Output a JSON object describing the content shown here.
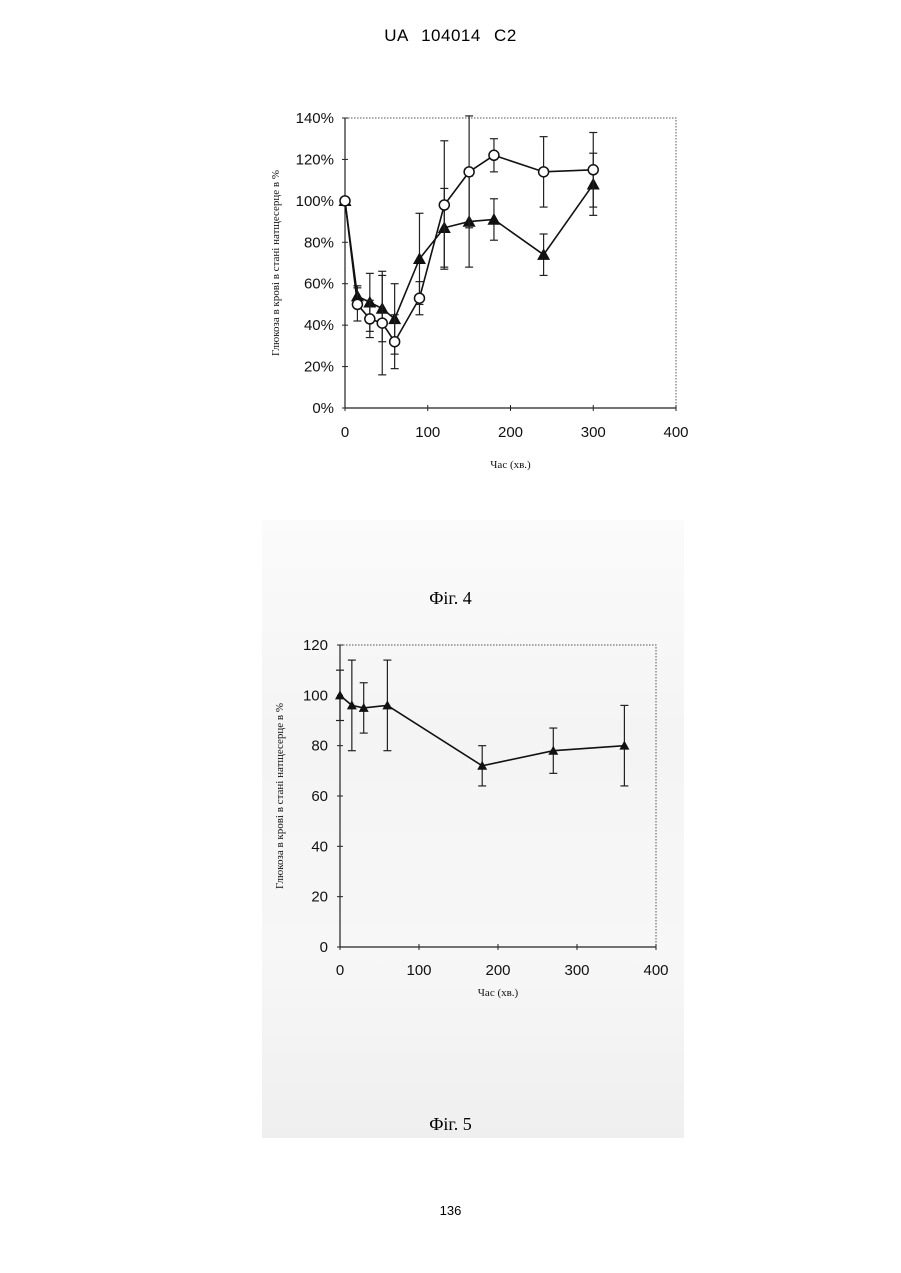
{
  "header": {
    "text": "UA   104014   C2"
  },
  "page_number": "136",
  "figures": [
    {
      "caption": "Фіг. 4"
    },
    {
      "caption": "Фіг. 5"
    }
  ],
  "chart_data": [
    {
      "type": "line",
      "xlabel": "Час (хв.)",
      "ylabel": "Глюкоза в крові в стані натщесерце в %",
      "xlim": [
        0,
        400
      ],
      "ylim": [
        0,
        140
      ],
      "x_ticks": [
        "0",
        "100",
        "200",
        "300",
        "400"
      ],
      "y_ticks": [
        "0%",
        "20%",
        "40%",
        "60%",
        "80%",
        "100%",
        "120%",
        "140%"
      ],
      "series": [
        {
          "marker": "triangle",
          "x": [
            0,
            15,
            30,
            45,
            60,
            90,
            120,
            150,
            180,
            240,
            300
          ],
          "y": [
            100,
            54,
            51,
            48,
            43,
            72,
            87,
            90,
            91,
            74,
            108
          ],
          "err": [
            0,
            5,
            14,
            16,
            17,
            22,
            19,
            22,
            10,
            10,
            15
          ]
        },
        {
          "marker": "circle",
          "x": [
            0,
            15,
            30,
            45,
            60,
            90,
            120,
            150,
            180,
            240,
            300
          ],
          "y": [
            100,
            50,
            43,
            41,
            32,
            53,
            98,
            114,
            122,
            114,
            115
          ],
          "err": [
            0,
            8,
            9,
            25,
            13,
            8,
            31,
            27,
            8,
            17,
            18
          ]
        }
      ]
    },
    {
      "type": "line",
      "xlabel": "Час (хв.)",
      "ylabel": "Глюкоза в крові в стані натщесерце в %",
      "xlim": [
        0,
        400
      ],
      "ylim": [
        0,
        120
      ],
      "x_ticks": [
        "0",
        "100",
        "200",
        "300",
        "400"
      ],
      "y_ticks": [
        "0",
        "20",
        "40",
        "60",
        "80",
        "100",
        "120"
      ],
      "series": [
        {
          "marker": "triangle",
          "x": [
            0,
            15,
            30,
            60,
            180,
            270,
            360
          ],
          "y": [
            100,
            96,
            95,
            96,
            72,
            78,
            80
          ],
          "err": [
            10,
            18,
            10,
            18,
            8,
            9,
            16
          ]
        }
      ]
    }
  ]
}
